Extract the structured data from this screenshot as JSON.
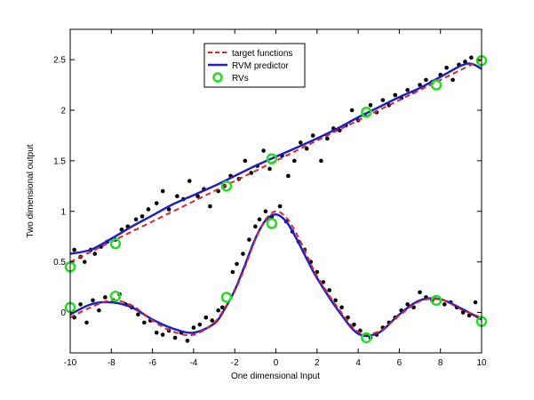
{
  "chart_data": {
    "type": "scatter",
    "xlabel": "One dimensional Input",
    "ylabel": "Two dimensional output",
    "xlim": [
      -10,
      10
    ],
    "ylim": [
      -0.4,
      2.8
    ],
    "xticks": [
      -10,
      -8,
      -6,
      -4,
      -2,
      0,
      2,
      4,
      6,
      8,
      10
    ],
    "yticks": [
      0,
      0.5,
      1,
      1.5,
      2,
      2.5
    ],
    "ytick_labels": [
      "0",
      "0.5",
      "1",
      "1.5",
      "2",
      "2.5"
    ],
    "grid": false,
    "legend_position": "top-center",
    "legend": [
      {
        "label": "target functions",
        "style": "dashed-line",
        "color": "#d62728"
      },
      {
        "label": "RVM predictor",
        "style": "solid-line",
        "color": "#1f1fc8"
      },
      {
        "label": "RVs",
        "style": "circle-marker",
        "color": "#22dd22"
      }
    ],
    "series": [
      {
        "name": "target functions",
        "kind": "line",
        "color": "#d62728",
        "dash": true,
        "curves": [
          {
            "x": [
              -10,
              -9,
              -8,
              -7,
              -6,
              -5,
              -4,
              -3,
              -2,
              -1,
              0,
              1,
              2,
              3,
              4,
              5,
              6,
              7,
              8,
              9,
              10
            ],
            "y": [
              0.5,
              0.6,
              0.7,
              0.8,
              0.9,
              1.0,
              1.1,
              1.2,
              1.3,
              1.4,
              1.5,
              1.6,
              1.7,
              1.8,
              1.9,
              2.0,
              2.1,
              2.2,
              2.3,
              2.4,
              2.5
            ]
          },
          {
            "x": [
              -10,
              -9,
              -8,
              -7,
              -6,
              -5,
              -4,
              -3,
              -2.5,
              -2,
              -1.5,
              -1,
              -0.5,
              0,
              0.5,
              1,
              1.5,
              2,
              3,
              4,
              5,
              6,
              7,
              8,
              9,
              10
            ],
            "y": [
              -0.05,
              0.05,
              0.12,
              0.07,
              -0.08,
              -0.19,
              -0.22,
              -0.1,
              0.04,
              0.21,
              0.45,
              0.72,
              0.92,
              1.0,
              0.94,
              0.78,
              0.57,
              0.36,
              0.05,
              -0.19,
              -0.19,
              -0.03,
              0.11,
              0.13,
              0.03,
              -0.05
            ]
          }
        ]
      },
      {
        "name": "RVM predictor",
        "kind": "line",
        "color": "#1f1fc8",
        "dash": false,
        "curves": [
          {
            "x": [
              -10,
              -9,
              -8,
              -7,
              -6,
              -5,
              -4,
              -3,
              -2,
              -1,
              0,
              1,
              2,
              3,
              4,
              5,
              6,
              7,
              8,
              9,
              9.5,
              10
            ],
            "y": [
              0.58,
              0.62,
              0.73,
              0.85,
              0.96,
              1.07,
              1.16,
              1.25,
              1.35,
              1.45,
              1.54,
              1.63,
              1.72,
              1.82,
              1.93,
              2.03,
              2.13,
              2.22,
              2.33,
              2.44,
              2.46,
              2.41
            ]
          },
          {
            "x": [
              -10,
              -9,
              -8,
              -7,
              -6,
              -5,
              -4,
              -3,
              -2.5,
              -2,
              -1.5,
              -1,
              -0.5,
              0,
              0.5,
              1,
              1.5,
              2,
              3,
              4,
              5,
              6,
              7,
              8,
              9,
              10
            ],
            "y": [
              -0.02,
              0.08,
              0.1,
              0.05,
              -0.07,
              -0.16,
              -0.2,
              -0.11,
              0.03,
              0.22,
              0.47,
              0.73,
              0.91,
              0.97,
              0.9,
              0.73,
              0.53,
              0.34,
              0.03,
              -0.21,
              -0.2,
              -0.02,
              0.12,
              0.13,
              0.04,
              -0.07
            ]
          }
        ]
      },
      {
        "name": "data",
        "kind": "points",
        "color": "#000000",
        "points": [
          [
            -9.8,
            0.62
          ],
          [
            -9.5,
            0.55
          ],
          [
            -9.3,
            0.5
          ],
          [
            -9.0,
            0.62
          ],
          [
            -8.8,
            0.58
          ],
          [
            -8.5,
            0.65
          ],
          [
            -8.2,
            0.7
          ],
          [
            -7.8,
            0.72
          ],
          [
            -7.5,
            0.82
          ],
          [
            -7.2,
            0.85
          ],
          [
            -6.8,
            0.92
          ],
          [
            -6.5,
            0.95
          ],
          [
            -6.2,
            1.02
          ],
          [
            -5.8,
            1.08
          ],
          [
            -5.5,
            1.2
          ],
          [
            -5.2,
            1.02
          ],
          [
            -4.8,
            1.15
          ],
          [
            -4.5,
            1.12
          ],
          [
            -4.2,
            1.3
          ],
          [
            -3.8,
            1.15
          ],
          [
            -3.5,
            1.22
          ],
          [
            -3.2,
            1.05
          ],
          [
            -2.8,
            1.2
          ],
          [
            -2.5,
            1.25
          ],
          [
            -2.2,
            1.35
          ],
          [
            -1.8,
            1.32
          ],
          [
            -1.5,
            1.5
          ],
          [
            -1.2,
            1.38
          ],
          [
            -0.9,
            1.45
          ],
          [
            -0.6,
            1.6
          ],
          [
            -0.3,
            1.42
          ],
          [
            0.3,
            1.55
          ],
          [
            0.6,
            1.35
          ],
          [
            0.9,
            1.5
          ],
          [
            1.2,
            1.68
          ],
          [
            1.5,
            1.62
          ],
          [
            1.8,
            1.75
          ],
          [
            2.2,
            1.5
          ],
          [
            2.5,
            1.72
          ],
          [
            2.8,
            1.82
          ],
          [
            3.1,
            1.8
          ],
          [
            3.4,
            1.85
          ],
          [
            3.7,
            2.0
          ],
          [
            4.0,
            1.9
          ],
          [
            4.3,
            1.95
          ],
          [
            4.6,
            2.05
          ],
          [
            4.9,
            1.98
          ],
          [
            5.2,
            2.1
          ],
          [
            5.5,
            2.05
          ],
          [
            5.8,
            2.15
          ],
          [
            6.1,
            2.12
          ],
          [
            6.4,
            2.2
          ],
          [
            6.7,
            2.18
          ],
          [
            7.0,
            2.25
          ],
          [
            7.3,
            2.3
          ],
          [
            7.6,
            2.28
          ],
          [
            8.0,
            2.35
          ],
          [
            8.3,
            2.42
          ],
          [
            8.6,
            2.3
          ],
          [
            8.9,
            2.45
          ],
          [
            9.2,
            2.48
          ],
          [
            9.5,
            2.52
          ],
          [
            -9.8,
            -0.05
          ],
          [
            -9.5,
            0.08
          ],
          [
            -9.2,
            -0.1
          ],
          [
            -8.9,
            0.12
          ],
          [
            -8.6,
            0.02
          ],
          [
            -8.3,
            0.15
          ],
          [
            -7.9,
            0.12
          ],
          [
            -7.6,
            0.18
          ],
          [
            -7.3,
            0.08
          ],
          [
            -7.0,
            0.05
          ],
          [
            -6.7,
            -0.02
          ],
          [
            -6.4,
            -0.1
          ],
          [
            -6.1,
            -0.08
          ],
          [
            -5.8,
            -0.2
          ],
          [
            -5.5,
            -0.22
          ],
          [
            -5.2,
            -0.18
          ],
          [
            -4.9,
            -0.25
          ],
          [
            -4.6,
            -0.2
          ],
          [
            -4.3,
            -0.28
          ],
          [
            -4.0,
            -0.15
          ],
          [
            -3.7,
            -0.12
          ],
          [
            -3.4,
            -0.05
          ],
          [
            -3.1,
            -0.08
          ],
          [
            -2.8,
            0.02
          ],
          [
            -2.6,
            0.05
          ],
          [
            -2.1,
            0.4
          ],
          [
            -1.9,
            0.48
          ],
          [
            -1.6,
            0.58
          ],
          [
            -1.3,
            0.72
          ],
          [
            -1.0,
            0.85
          ],
          [
            -0.8,
            0.92
          ],
          [
            -0.5,
            1.0
          ],
          [
            -0.2,
            0.95
          ],
          [
            0.2,
            1.05
          ],
          [
            0.5,
            0.9
          ],
          [
            0.8,
            0.8
          ],
          [
            1.1,
            0.7
          ],
          [
            1.4,
            0.62
          ],
          [
            1.7,
            0.5
          ],
          [
            2.0,
            0.4
          ],
          [
            2.3,
            0.3
          ],
          [
            2.6,
            0.22
          ],
          [
            2.9,
            0.12
          ],
          [
            3.2,
            0.05
          ],
          [
            3.5,
            -0.05
          ],
          [
            3.8,
            -0.12
          ],
          [
            4.1,
            -0.18
          ],
          [
            4.6,
            -0.25
          ],
          [
            4.9,
            -0.22
          ],
          [
            5.2,
            -0.15
          ],
          [
            5.5,
            -0.1
          ],
          [
            5.8,
            -0.05
          ],
          [
            6.1,
            0.02
          ],
          [
            6.4,
            0.08
          ],
          [
            6.7,
            0.05
          ],
          [
            7.0,
            0.2
          ],
          [
            7.3,
            0.15
          ],
          [
            7.6,
            0.12
          ],
          [
            8.2,
            0.08
          ],
          [
            8.5,
            0.1
          ],
          [
            8.8,
            0.05
          ],
          [
            9.1,
            0.0
          ],
          [
            9.4,
            -0.03
          ],
          [
            9.7,
            0.1
          ]
        ]
      },
      {
        "name": "RVs",
        "kind": "markers",
        "color": "#22dd22",
        "points": [
          [
            -10.0,
            0.45
          ],
          [
            -7.8,
            0.68
          ],
          [
            -2.4,
            1.25
          ],
          [
            -0.2,
            1.52
          ],
          [
            4.4,
            1.98
          ],
          [
            7.8,
            2.25
          ],
          [
            10.0,
            2.49
          ],
          [
            -10.0,
            0.05
          ],
          [
            -7.8,
            0.16
          ],
          [
            -2.4,
            0.15
          ],
          [
            -0.2,
            0.88
          ],
          [
            4.4,
            -0.25
          ],
          [
            7.8,
            0.12
          ],
          [
            10.0,
            -0.09
          ]
        ]
      }
    ]
  }
}
